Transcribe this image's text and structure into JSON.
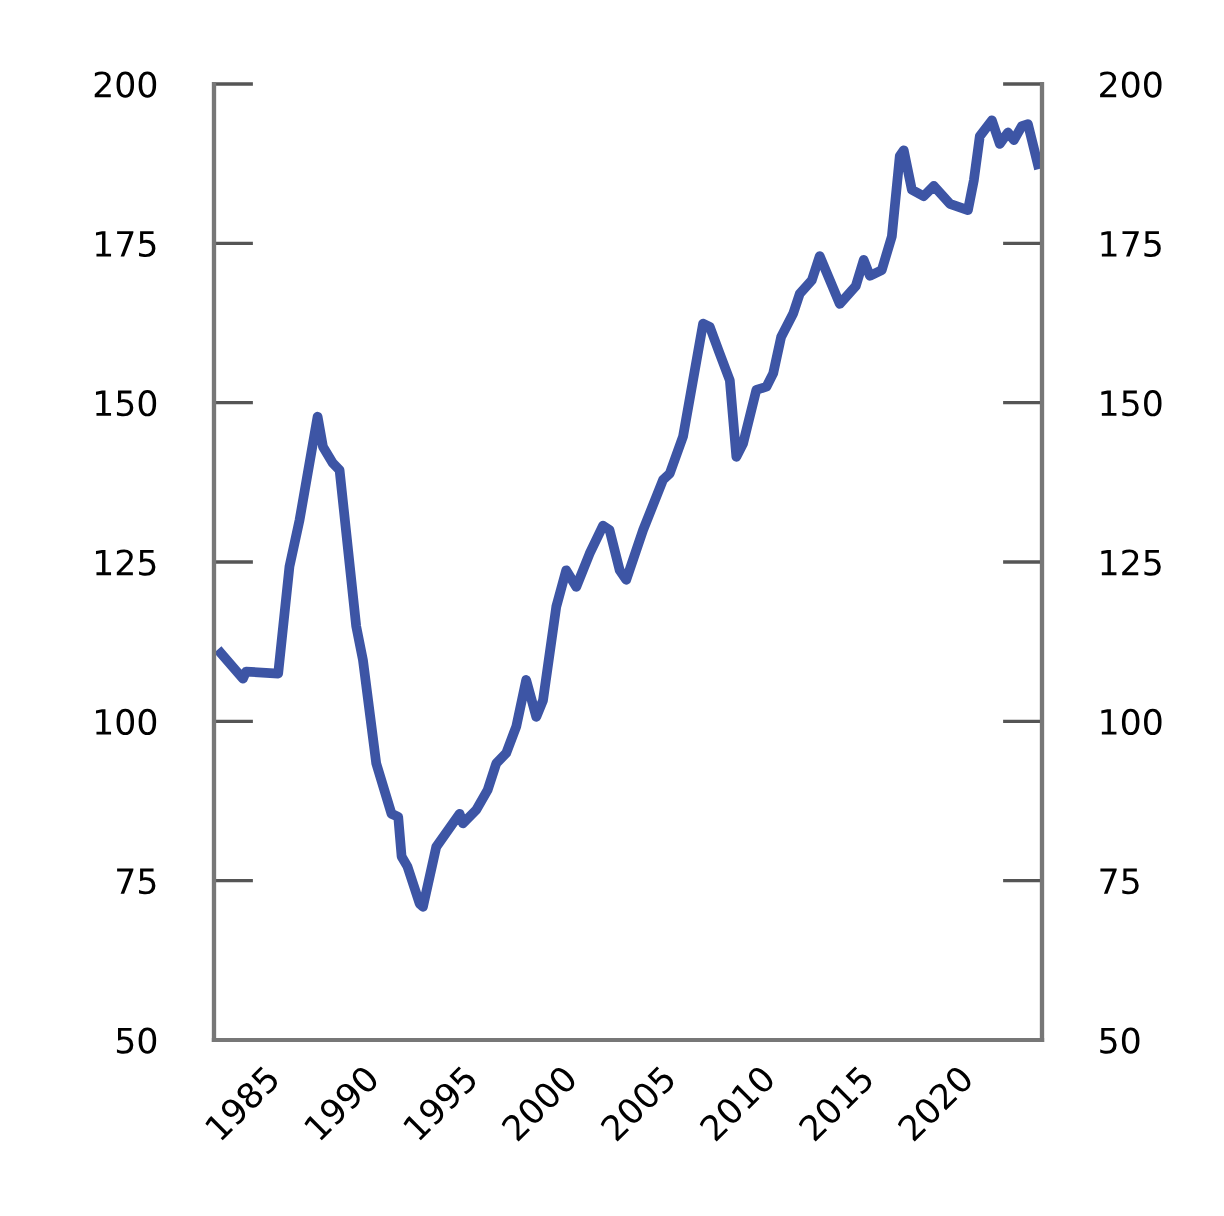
{
  "chart_data": {
    "type": "line",
    "x": [
      1982.85,
      1983.96,
      1984.12,
      1985.74,
      1986.31,
      1986.82,
      1987.73,
      1988.0,
      1988.5,
      1988.84,
      1989.68,
      1990.02,
      1990.69,
      1991.46,
      1991.8,
      1991.97,
      1992.27,
      1992.88,
      1993.05,
      1993.72,
      1994.9,
      1995.07,
      1995.74,
      1996.31,
      1996.75,
      1997.25,
      1997.76,
      1998.26,
      1998.77,
      1999.11,
      1999.78,
      2000.28,
      2000.79,
      2001.46,
      2002.14,
      2002.47,
      2002.98,
      2003.31,
      2004.16,
      2005.17,
      2005.51,
      2006.18,
      2007.19,
      2007.53,
      2008.03,
      2008.54,
      2008.87,
      2009.21,
      2009.88,
      2010.39,
      2010.73,
      2011.13,
      2011.74,
      2012.07,
      2012.68,
      2013.08,
      2014.09,
      2014.9,
      2015.3,
      2015.61,
      2016.21,
      2016.72,
      2017.12,
      2017.32,
      2017.73,
      2018.33,
      2018.84,
      2019.65,
      2020.56,
      2020.86,
      2021.16,
      2021.77,
      2022.17,
      2022.58,
      2022.88,
      2023.28,
      2023.59,
      2024.09
    ],
    "series": [
      {
        "color": "#3d55a5",
        "values": [
          110.7,
          106.7,
          107.8,
          107.5,
          124.3,
          131.6,
          147.8,
          143.1,
          140.5,
          139.4,
          114.9,
          109.6,
          93.4,
          85.5,
          85.0,
          78.8,
          77.2,
          71.4,
          70.9,
          80.3,
          85.5,
          84.0,
          86.1,
          89.2,
          93.4,
          95.0,
          99.2,
          106.5,
          100.7,
          103.3,
          118.0,
          123.7,
          121.1,
          126.3,
          130.7,
          130.0,
          123.7,
          122.2,
          130.0,
          137.9,
          138.9,
          144.7,
          162.4,
          161.9,
          157.7,
          153.5,
          141.5,
          143.6,
          152.0,
          152.5,
          154.6,
          160.3,
          164.0,
          167.1,
          169.2,
          173.0,
          165.5,
          168.3,
          172.4,
          169.9,
          170.8,
          176.1,
          188.7,
          189.6,
          183.4,
          182.4,
          184.0,
          181.2,
          180.2,
          184.9,
          191.8,
          194.3,
          190.6,
          192.4,
          191.2,
          193.4,
          193.7,
          187.4
        ]
      }
    ],
    "xlim": [
      1982.5,
      2024.3
    ],
    "xticks": [
      1985,
      1990,
      1995,
      2000,
      2005,
      2010,
      2015,
      2020
    ],
    "ylim": [
      50,
      200
    ],
    "yticks": [
      50,
      75,
      100,
      125,
      150,
      175,
      200
    ],
    "y2lim": [
      50,
      200
    ],
    "y2ticks": [
      50,
      75,
      100,
      125,
      150,
      175,
      200
    ],
    "grid": false,
    "legend": false,
    "marker": "none",
    "line_style": "solid"
  }
}
